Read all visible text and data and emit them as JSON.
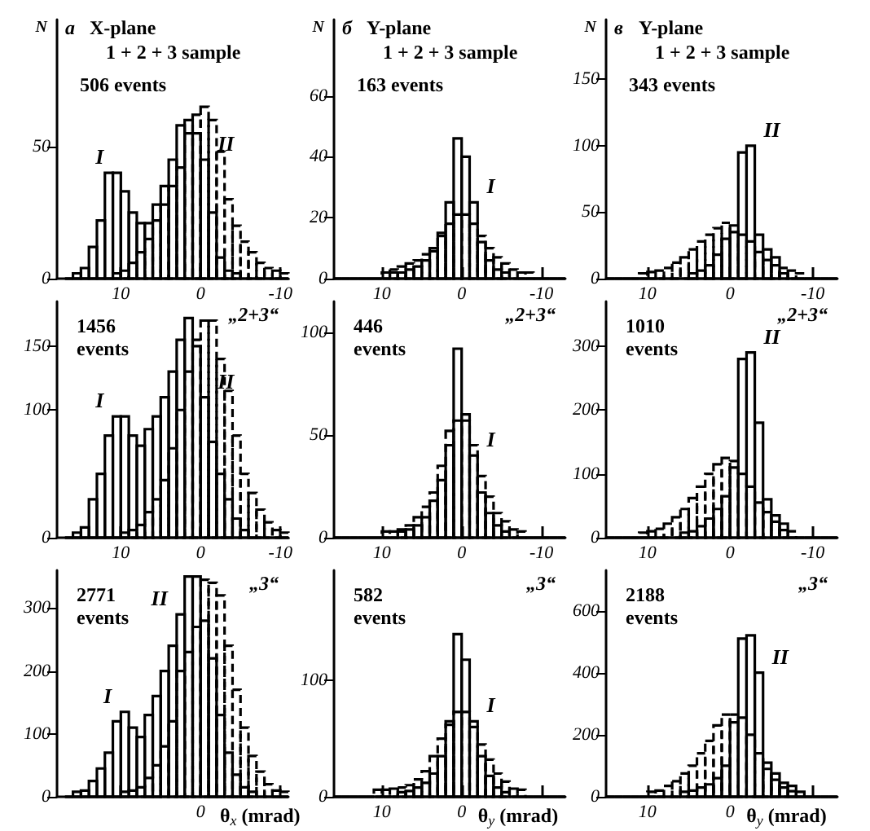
{
  "chart_data": [
    {
      "type": "histogram",
      "title": "X-plane",
      "subtitle": "1 + 2 + 3 sample",
      "ylabel": "N",
      "annotations": [
        "а",
        "506 events",
        {
          "text": "I",
          "x": 10.5,
          "y": 40
        },
        {
          "text": "II",
          "x": -0.5,
          "y": 45
        }
      ],
      "bins": [
        17,
        16,
        15,
        14,
        13,
        12,
        11,
        10,
        9,
        8,
        7,
        6,
        5,
        4,
        3,
        2,
        1,
        0,
        -1,
        -2,
        -3,
        -4,
        -5,
        -6,
        -7,
        -8,
        -9,
        -10,
        -11
      ],
      "series": [
        {
          "color": "#000000",
          "line_style": "solid",
          "values": [
            0,
            2,
            4,
            12,
            22,
            40,
            40,
            33,
            25,
            21,
            21,
            28,
            35,
            45,
            58,
            60,
            55,
            45,
            25,
            8,
            3,
            2,
            0,
            0,
            0,
            0,
            0,
            0
          ]
        },
        {
          "color": "#000000",
          "line_style": "dashed",
          "values": [
            0,
            0,
            0,
            0,
            0,
            0,
            2,
            3,
            6,
            10,
            15,
            22,
            28,
            35,
            42,
            55,
            62,
            65,
            60,
            48,
            30,
            20,
            14,
            10,
            6,
            4,
            3,
            2
          ]
        }
      ],
      "xlim": [
        18,
        -11
      ],
      "xticks": [
        10,
        0,
        -10
      ],
      "ylim": [
        0,
        98
      ],
      "yticks": [
        0,
        50
      ]
    },
    {
      "type": "histogram",
      "title": "Y-plane",
      "subtitle": "1 + 2 + 3 sample",
      "ylabel": "N",
      "annotations": [
        "б",
        "163 events",
        {
          "text": "I",
          "x": -1.5,
          "y": 25
        }
      ],
      "bins": [
        16,
        15,
        14,
        13,
        12,
        11,
        10,
        9,
        8,
        7,
        6,
        5,
        4,
        3,
        2,
        1,
        0,
        -1,
        -2,
        -3,
        -4,
        -5,
        -6,
        -7,
        -8,
        -9,
        -10,
        -11,
        -12,
        -13
      ],
      "series": [
        {
          "color": "#000000",
          "line_style": "solid",
          "values": [
            0,
            0,
            0,
            0,
            0,
            0,
            0,
            2,
            2,
            3,
            4,
            6,
            10,
            15,
            25,
            46,
            40,
            25,
            12,
            6,
            3,
            2,
            0,
            0,
            0,
            0,
            0,
            0,
            0
          ]
        },
        {
          "color": "#000000",
          "line_style": "dashed",
          "values": [
            0,
            0,
            0,
            0,
            0,
            0,
            2,
            3,
            4,
            5,
            6,
            8,
            9,
            14,
            18,
            21,
            21,
            18,
            14,
            10,
            7,
            5,
            3,
            2,
            2,
            0,
            0,
            0,
            0
          ]
        }
      ],
      "xlim": [
        16,
        -13
      ],
      "xticks": [
        10,
        0,
        -10
      ],
      "ylim": [
        0,
        85
      ],
      "yticks": [
        0,
        20,
        40,
        60
      ]
    },
    {
      "type": "histogram",
      "title": "Y-plane",
      "subtitle": "1 + 2 + 3 sample",
      "ylabel": "N",
      "annotations": [
        "в",
        "343 events",
        {
          "text": "II",
          "x": -2.5,
          "y": 100
        }
      ],
      "bins": [
        15,
        14,
        13,
        12,
        11,
        10,
        9,
        8,
        7,
        6,
        5,
        4,
        3,
        2,
        1,
        0,
        -1,
        -2,
        -3,
        -4,
        -5,
        -6,
        -7,
        -8,
        -9,
        -10,
        -11,
        -12,
        -13
      ],
      "series": [
        {
          "color": "#000000",
          "line_style": "solid",
          "values": [
            0,
            0,
            0,
            0,
            0,
            0,
            0,
            0,
            0,
            0,
            4,
            6,
            10,
            18,
            30,
            35,
            95,
            100,
            33,
            22,
            16,
            4,
            0,
            0,
            0,
            0,
            0,
            0
          ]
        },
        {
          "color": "#000000",
          "line_style": "dashed",
          "values": [
            0,
            0,
            0,
            0,
            4,
            5,
            6,
            8,
            12,
            16,
            22,
            28,
            33,
            38,
            42,
            40,
            33,
            28,
            20,
            14,
            10,
            8,
            6,
            4,
            0,
            0,
            0,
            0
          ]
        }
      ],
      "xlim": [
        15,
        -13
      ],
      "xticks": [
        10,
        0,
        -10
      ],
      "ylim": [
        0,
        195
      ],
      "yticks": [
        0,
        50,
        100,
        150
      ]
    },
    {
      "type": "histogram",
      "title": "„2+3“",
      "annotations": [
        "1456 events",
        {
          "text": "I",
          "x": 10.5,
          "y": 95
        },
        {
          "text": "II",
          "x": -0.5,
          "y": 110
        }
      ],
      "bins": [
        17,
        16,
        15,
        14,
        13,
        12,
        11,
        10,
        9,
        8,
        7,
        6,
        5,
        4,
        3,
        2,
        1,
        0,
        -1,
        -2,
        -3,
        -4,
        -5,
        -6,
        -7,
        -8,
        -9,
        -10,
        -11
      ],
      "series": [
        {
          "color": "#000000",
          "line_style": "solid",
          "values": [
            0,
            4,
            8,
            30,
            50,
            80,
            95,
            95,
            80,
            72,
            85,
            95,
            110,
            130,
            155,
            172,
            150,
            110,
            75,
            50,
            30,
            15,
            6,
            0,
            0,
            0,
            0,
            0
          ]
        },
        {
          "color": "#000000",
          "line_style": "dashed",
          "values": [
            0,
            0,
            0,
            0,
            0,
            0,
            0,
            4,
            6,
            10,
            20,
            30,
            45,
            70,
            100,
            130,
            155,
            170,
            170,
            140,
            115,
            80,
            50,
            35,
            22,
            12,
            6,
            4
          ]
        }
      ],
      "xlim": [
        18,
        -11
      ],
      "xticks": [
        10,
        0,
        -10
      ],
      "ylim": [
        0,
        185
      ],
      "yticks": [
        0,
        100,
        150
      ]
    },
    {
      "type": "histogram",
      "title": "„2+3“",
      "annotations": [
        "446 events",
        {
          "text": "I",
          "x": -1.5,
          "y": 40
        }
      ],
      "bins": [
        16,
        15,
        14,
        13,
        12,
        11,
        10,
        9,
        8,
        7,
        6,
        5,
        4,
        3,
        2,
        1,
        0,
        -1,
        -2,
        -3,
        -4,
        -5,
        -6,
        -7,
        -8,
        -9,
        -10,
        -11,
        -12,
        -13
      ],
      "series": [
        {
          "color": "#000000",
          "line_style": "solid",
          "values": [
            0,
            0,
            0,
            0,
            0,
            0,
            0,
            0,
            3,
            4,
            6,
            10,
            18,
            28,
            45,
            92,
            60,
            40,
            22,
            12,
            6,
            3,
            0,
            0,
            0,
            0,
            0,
            0,
            0
          ]
        },
        {
          "color": "#000000",
          "line_style": "dashed",
          "values": [
            0,
            0,
            0,
            0,
            0,
            0,
            3,
            3,
            4,
            6,
            10,
            15,
            22,
            35,
            52,
            57,
            57,
            45,
            30,
            20,
            12,
            8,
            4,
            3,
            0,
            0,
            0,
            0,
            0
          ]
        }
      ],
      "xlim": [
        16,
        -13
      ],
      "xticks": [
        10,
        0,
        -10
      ],
      "ylim": [
        0,
        115
      ],
      "yticks": [
        0,
        50,
        100
      ]
    },
    {
      "type": "histogram",
      "title": "„2+3“",
      "annotations": [
        "1010 events",
        {
          "text": "II",
          "x": -2.5,
          "y": 290
        }
      ],
      "bins": [
        15,
        14,
        13,
        12,
        11,
        10,
        9,
        8,
        7,
        6,
        5,
        4,
        3,
        2,
        1,
        0,
        -1,
        -2,
        -3,
        -4,
        -5,
        -6,
        -7,
        -8,
        -9,
        -10,
        -11,
        -12,
        -13
      ],
      "series": [
        {
          "color": "#000000",
          "line_style": "solid",
          "values": [
            0,
            0,
            0,
            0,
            0,
            0,
            0,
            0,
            0,
            8,
            10,
            18,
            30,
            45,
            65,
            110,
            280,
            290,
            180,
            60,
            35,
            22,
            0,
            0,
            0,
            0,
            0,
            0
          ]
        },
        {
          "color": "#000000",
          "line_style": "dashed",
          "values": [
            0,
            0,
            0,
            0,
            8,
            10,
            14,
            22,
            32,
            45,
            62,
            80,
            100,
            115,
            125,
            120,
            100,
            80,
            55,
            40,
            25,
            12,
            10,
            0,
            0,
            0,
            0,
            0
          ]
        }
      ],
      "xlim": [
        15,
        -13
      ],
      "xticks": [
        10,
        0,
        -10
      ],
      "ylim": [
        0,
        370
      ],
      "yticks": [
        0,
        100,
        200,
        300
      ]
    },
    {
      "type": "histogram",
      "title": "„3“",
      "xlabel": "θ$_{x}$ (mrad)",
      "annotations": [
        "2771 events",
        {
          "text": "I",
          "x": 9.5,
          "y": 135
        },
        {
          "text": "II",
          "x": 2.5,
          "y": 290
        },
        {
          "text": "0",
          "x": 0,
          "y": 0
        }
      ],
      "tick_labels": "y",
      "bins": [
        17,
        16,
        15,
        14,
        13,
        12,
        11,
        10,
        9,
        8,
        7,
        6,
        5,
        4,
        3,
        2,
        1,
        0,
        -1,
        -2,
        -3,
        -4,
        -5,
        -6,
        -7,
        -8,
        -9,
        -10,
        -11
      ],
      "series": [
        {
          "color": "#000000",
          "line_style": "solid",
          "values": [
            0,
            8,
            10,
            25,
            45,
            70,
            120,
            135,
            110,
            95,
            130,
            160,
            200,
            240,
            290,
            350,
            350,
            280,
            220,
            130,
            70,
            35,
            15,
            8,
            0,
            0,
            0,
            0
          ]
        },
        {
          "color": "#000000",
          "line_style": "dashed",
          "values": [
            0,
            0,
            0,
            0,
            0,
            0,
            0,
            8,
            10,
            15,
            30,
            50,
            80,
            120,
            200,
            230,
            270,
            345,
            340,
            320,
            240,
            170,
            110,
            65,
            40,
            20,
            10,
            8
          ]
        }
      ],
      "xlim": [
        18,
        -11
      ],
      "xticks": [
        10,
        0,
        -10
      ],
      "ylim": [
        0,
        360
      ],
      "yticks": [
        0,
        100,
        200,
        300
      ]
    },
    {
      "type": "histogram",
      "title": "„3“",
      "xlabel": "θ$_{y}$ (mrad)",
      "annotations": [
        "582 events",
        {
          "text": "I",
          "x": -1.5,
          "y": 65
        }
      ],
      "bins": [
        16,
        15,
        14,
        13,
        12,
        11,
        10,
        9,
        8,
        7,
        6,
        5,
        4,
        3,
        2,
        1,
        0,
        -1,
        -2,
        -3,
        -4,
        -5,
        -6,
        -7,
        -8,
        -9,
        -10,
        -11,
        -12,
        -13
      ],
      "series": [
        {
          "color": "#000000",
          "line_style": "solid",
          "values": [
            0,
            0,
            0,
            0,
            0,
            0,
            0,
            0,
            4,
            5,
            8,
            12,
            20,
            35,
            65,
            140,
            118,
            65,
            35,
            18,
            8,
            4,
            0,
            0,
            0,
            0,
            0,
            0,
            0
          ]
        },
        {
          "color": "#000000",
          "line_style": "dashed",
          "values": [
            0,
            0,
            0,
            0,
            0,
            6,
            6,
            7,
            8,
            10,
            15,
            22,
            35,
            50,
            62,
            73,
            73,
            60,
            45,
            32,
            20,
            13,
            7,
            6,
            0,
            0,
            0,
            0,
            0
          ]
        }
      ],
      "xlim": [
        16,
        -13
      ],
      "xticks": [
        10,
        0,
        {
          "value": -10,
          "label": null
        }
      ],
      "ylim": [
        0,
        195
      ],
      "yticks": [
        0,
        100
      ]
    },
    {
      "type": "histogram",
      "title": "„3“",
      "xlabel": "θ$_{y}$ (mrad)",
      "annotations": [
        "2188 events",
        {
          "text": "II",
          "x": -3.5,
          "y": 400
        }
      ],
      "bins": [
        15,
        14,
        13,
        12,
        11,
        10,
        9,
        8,
        7,
        6,
        5,
        4,
        3,
        2,
        1,
        0,
        -1,
        -2,
        -3,
        -4,
        -5,
        -6,
        -7,
        -8,
        -9,
        -10,
        -11,
        -12,
        -13
      ],
      "series": [
        {
          "color": "#000000",
          "line_style": "solid",
          "values": [
            0,
            0,
            0,
            0,
            0,
            0,
            0,
            0,
            0,
            16,
            20,
            30,
            40,
            60,
            100,
            240,
            510,
            520,
            400,
            110,
            75,
            45,
            35,
            16,
            0,
            0,
            0,
            0
          ]
        },
        {
          "color": "#000000",
          "line_style": "dashed",
          "values": [
            0,
            0,
            0,
            0,
            0,
            16,
            20,
            35,
            50,
            75,
            100,
            140,
            180,
            230,
            265,
            265,
            255,
            200,
            140,
            90,
            55,
            30,
            18,
            0,
            0,
            0,
            0,
            0
          ]
        }
      ],
      "xlim": [
        15,
        -13
      ],
      "xticks": [
        10,
        0,
        {
          "value": -10,
          "label": null
        }
      ],
      "ylim": [
        0,
        730
      ],
      "yticks": [
        0,
        200,
        400,
        600
      ]
    }
  ]
}
